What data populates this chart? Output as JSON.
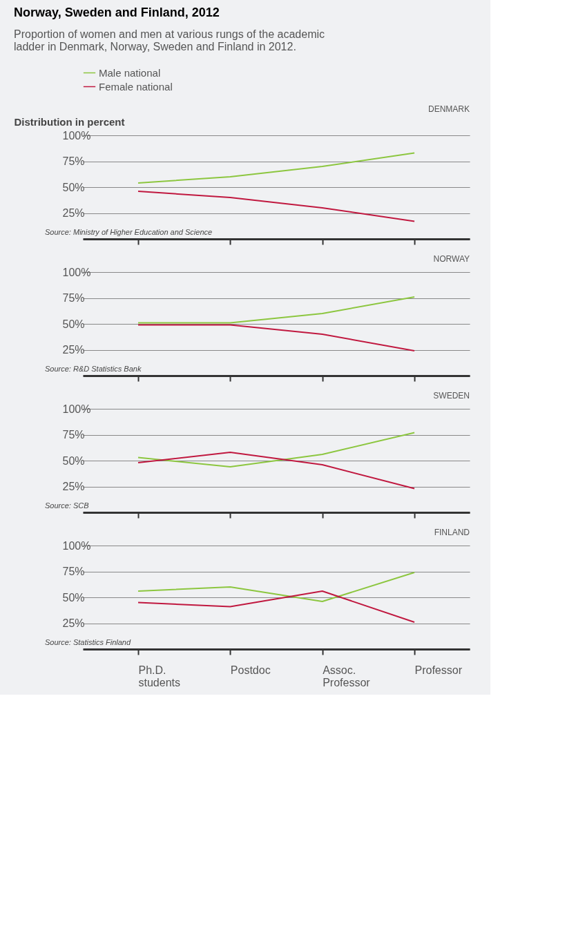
{
  "chart_data": [
    {
      "type": "line",
      "title": "DENMARK",
      "subtitle": "Proportion of women and men at various rungs of the academic ladder in Denmark, Norway, Sweden and Finland in 2012.",
      "ylabel": "Distribution in percent",
      "annotations": [
        "Norway, Sweden and Finland, 2012",
        "Source: Ministry of Higher Education and Science"
      ],
      "categories": [
        "Ph.D. students",
        "Postdoc",
        "Assoc. Professor",
        "Professor"
      ],
      "series": [
        {
          "name": "Male national",
          "color": "#8cc63f",
          "values": [
            54,
            60,
            70,
            83
          ]
        },
        {
          "name": "Female national",
          "color": "#c0183f",
          "values": [
            46,
            40,
            30,
            17
          ]
        }
      ],
      "ylim": [
        0,
        100
      ],
      "yticks": [
        {
          "value": 0,
          "label": null
        },
        {
          "value": 25,
          "label": "25%"
        },
        {
          "value": 50,
          "label": "50%"
        },
        {
          "value": 75,
          "label": "75%"
        },
        {
          "value": 100,
          "label": "100%"
        }
      ],
      "grid": "y",
      "legend": "top left",
      "tick_labels": "y",
      "marker": "none",
      "line_style": "solid"
    },
    {
      "type": "line",
      "title": "NORWAY",
      "annotations": [
        "Source: R&D Statistics Bank"
      ],
      "categories": [
        "Ph.D. students",
        "Postdoc",
        "Assoc. Professor",
        "Professor"
      ],
      "series": [
        {
          "name": "Male national",
          "color": "#8cc63f",
          "values": [
            51,
            51,
            60,
            76
          ]
        },
        {
          "name": "Female national",
          "color": "#c0183f",
          "values": [
            49,
            49,
            40,
            24
          ]
        }
      ],
      "ylim": [
        0,
        100
      ],
      "yticks": [
        {
          "value": 0,
          "label": null
        },
        {
          "value": 25,
          "label": "25%"
        },
        {
          "value": 50,
          "label": "50%"
        },
        {
          "value": 75,
          "label": "75%"
        },
        {
          "value": 100,
          "label": "100%"
        }
      ],
      "grid": "y",
      "tick_labels": "y",
      "marker": "none",
      "line_style": "solid"
    },
    {
      "type": "line",
      "title": "SWEDEN",
      "annotations": [
        "Source: SCB"
      ],
      "categories": [
        "Ph.D. students",
        "Postdoc",
        "Assoc. Professor",
        "Professor"
      ],
      "series": [
        {
          "name": "Male national",
          "color": "#8cc63f",
          "values": [
            53,
            44,
            56,
            77
          ]
        },
        {
          "name": "Female national",
          "color": "#c0183f",
          "values": [
            48,
            58,
            46,
            23
          ]
        }
      ],
      "ylim": [
        0,
        100
      ],
      "yticks": [
        {
          "value": 0,
          "label": null
        },
        {
          "value": 25,
          "label": "25%"
        },
        {
          "value": 50,
          "label": "50%"
        },
        {
          "value": 75,
          "label": "75%"
        },
        {
          "value": 100,
          "label": "100%"
        }
      ],
      "grid": "y",
      "tick_labels": "y",
      "marker": "none",
      "line_style": "solid"
    },
    {
      "type": "line",
      "title": "FINLAND",
      "annotations": [
        "Source: Statistics Finland"
      ],
      "categories": [
        "Ph.D. students",
        "Postdoc",
        "Assoc. Professor",
        "Professor"
      ],
      "series": [
        {
          "name": "Male national",
          "color": "#8cc63f",
          "values": [
            56,
            60,
            46,
            74
          ]
        },
        {
          "name": "Female national",
          "color": "#c0183f",
          "values": [
            45,
            41,
            56,
            26
          ]
        }
      ],
      "ylim": [
        0,
        100
      ],
      "yticks": [
        {
          "value": 0,
          "label": null
        },
        {
          "value": 25,
          "label": "25%"
        },
        {
          "value": 50,
          "label": "50%"
        },
        {
          "value": 75,
          "label": "75%"
        },
        {
          "value": 100,
          "label": "100%"
        }
      ],
      "grid": "y",
      "marker": "none",
      "line_style": "solid"
    }
  ]
}
